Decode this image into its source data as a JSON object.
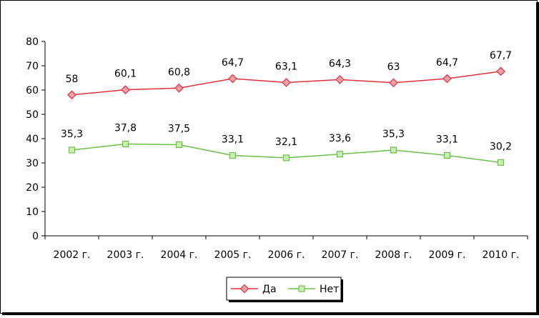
{
  "chart_data": {
    "type": "line",
    "categories": [
      "2002 г.",
      "2003 г.",
      "2004 г.",
      "2005 г.",
      "2006 г.",
      "2007 г.",
      "2008 г.",
      "2009 г.",
      "2010 г."
    ],
    "series": [
      {
        "name": "Да",
        "values": [
          58,
          60.1,
          60.8,
          64.7,
          63.1,
          64.3,
          63,
          64.7,
          67.7
        ],
        "labels": [
          "58",
          "60,1",
          "60,8",
          "64,7",
          "63,1",
          "64,3",
          "63",
          "64,7",
          "67,7"
        ],
        "color": "#e0303a",
        "marker": "diamond",
        "marker_fill": "#f6a0a8"
      },
      {
        "name": "Нет",
        "values": [
          35.3,
          37.8,
          37.5,
          33.1,
          32.1,
          33.6,
          35.3,
          33.1,
          30.2
        ],
        "labels": [
          "35,3",
          "37,8",
          "37,5",
          "33,1",
          "32,1",
          "33,6",
          "35,3",
          "33,1",
          "30,2"
        ],
        "color": "#6cc04a",
        "marker": "square",
        "marker_fill": "#c8f0b0"
      }
    ],
    "ylim": [
      0,
      80
    ],
    "yticks": [
      "0",
      "10",
      "20",
      "30",
      "40",
      "50",
      "60",
      "70",
      "80"
    ],
    "grid": false,
    "legend_position": "bottom-right",
    "title": "",
    "xlabel": "",
    "ylabel": ""
  }
}
